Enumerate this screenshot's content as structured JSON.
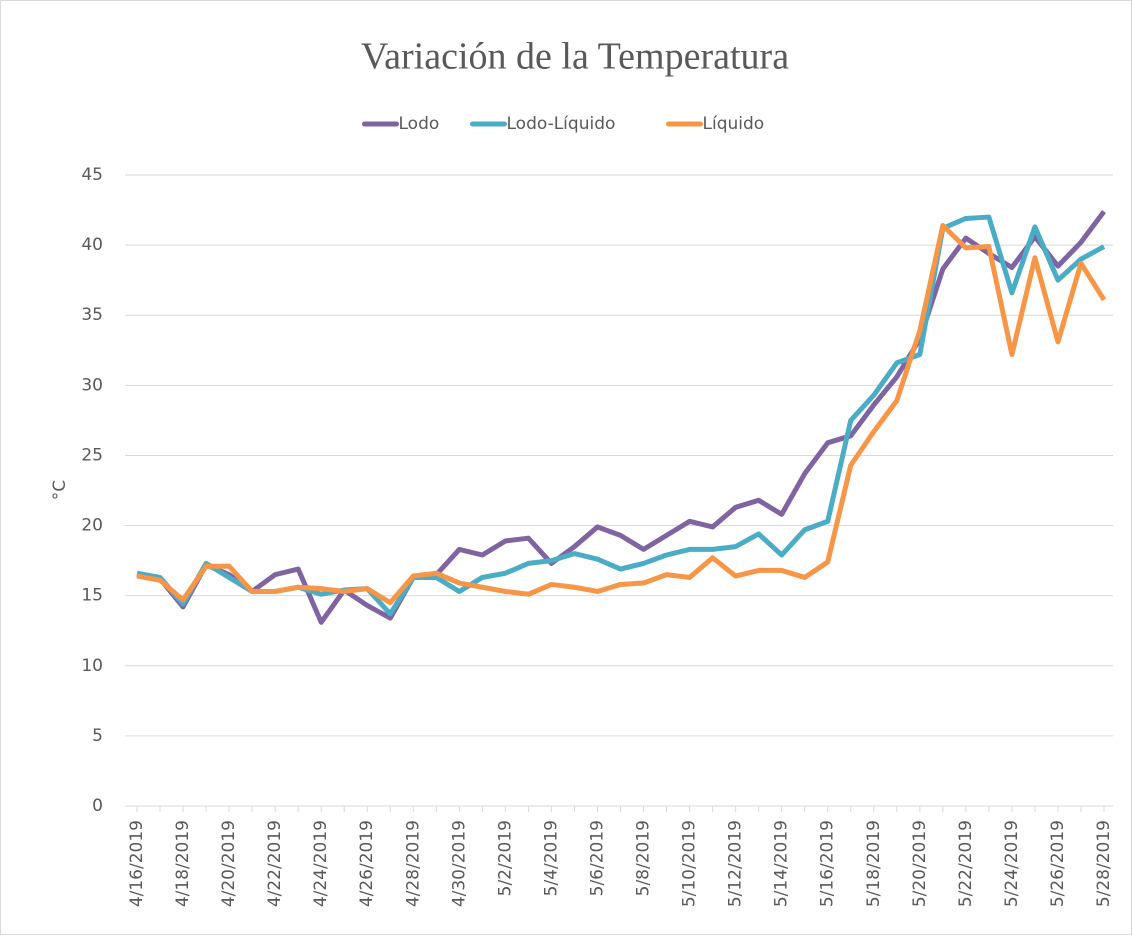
{
  "chart_data": {
    "type": "line",
    "title": "Variación de la Temperatura",
    "y_label": "°C",
    "categories": [
      "4/16/2019",
      null,
      "4/18/2019",
      null,
      "4/20/2019",
      null,
      "4/22/2019",
      null,
      "4/24/2019",
      null,
      "4/26/2019",
      null,
      "4/28/2019",
      null,
      "4/30/2019",
      null,
      "5/2/2019",
      null,
      "5/4/2019",
      null,
      "5/6/2019",
      null,
      "5/8/2019",
      null,
      "5/10/2019",
      null,
      "5/12/2019",
      null,
      "5/14/2019",
      null,
      "5/16/2019",
      null,
      "5/18/2019",
      null,
      "5/20/2019",
      null,
      "5/22/2019",
      null,
      "5/24/2019",
      null,
      "5/26/2019",
      null,
      "5/28/2019"
    ],
    "series": [
      {
        "name": "Lodo",
        "color": "#8064a2",
        "values": [
          16.5,
          16.2,
          14.2,
          17.2,
          16.5,
          15.3,
          16.5,
          16.9,
          13.1,
          15.4,
          14.3,
          13.4,
          16.3,
          16.5,
          18.3,
          17.9,
          18.9,
          19.1,
          17.3,
          18.5,
          19.9,
          19.3,
          18.3,
          19.3,
          20.3,
          19.9,
          21.3,
          21.8,
          20.8,
          23.7,
          25.9,
          26.4,
          28.6,
          30.6,
          33.3,
          38.3,
          40.5,
          39.4,
          38.4,
          40.6,
          38.5,
          40.2,
          42.4
        ]
      },
      {
        "name": "Lodo-Líquido",
        "color": "#4bacc6",
        "values": [
          16.6,
          16.3,
          14.4,
          17.3,
          16.3,
          15.3,
          15.3,
          15.6,
          15.1,
          15.4,
          15.5,
          13.7,
          16.3,
          16.3,
          15.3,
          16.3,
          16.6,
          17.3,
          17.5,
          18.0,
          17.6,
          16.9,
          17.3,
          17.9,
          18.3,
          18.3,
          18.5,
          19.4,
          17.9,
          19.7,
          20.3,
          27.5,
          29.3,
          31.6,
          32.2,
          41.2,
          41.9,
          42.0,
          36.6,
          41.3,
          37.5,
          39.0,
          39.9
        ]
      },
      {
        "name": "Líquido",
        "color": "#f79646",
        "values": [
          16.4,
          16.1,
          14.7,
          17.1,
          17.1,
          15.3,
          15.3,
          15.6,
          15.5,
          15.3,
          15.5,
          14.5,
          16.4,
          16.6,
          15.9,
          15.6,
          15.3,
          15.1,
          15.8,
          15.6,
          15.3,
          15.8,
          15.9,
          16.5,
          16.3,
          17.7,
          16.4,
          16.8,
          16.8,
          16.3,
          17.4,
          24.3,
          26.7,
          28.9,
          33.9,
          41.4,
          39.8,
          39.9,
          32.2,
          39.1,
          33.1,
          38.7,
          36.1
        ]
      }
    ],
    "ylim": [
      0,
      45
    ],
    "yticks": [
      0,
      5,
      10,
      15,
      20,
      25,
      30,
      35,
      40,
      45
    ],
    "grid": true,
    "legend": "top"
  }
}
